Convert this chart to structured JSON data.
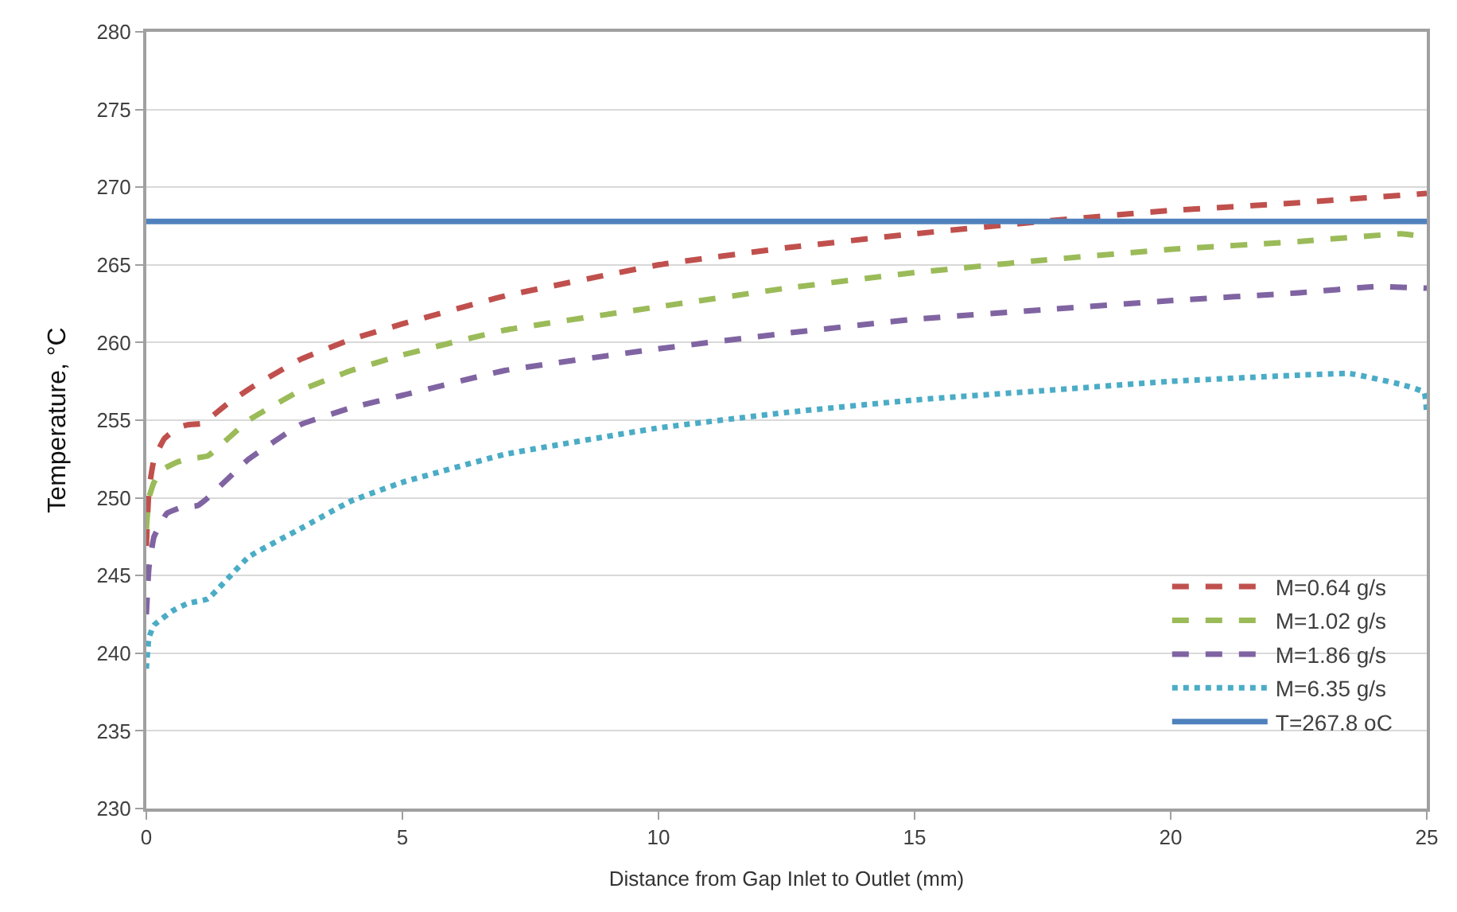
{
  "chart_data": {
    "type": "line",
    "xlabel": "Distance from Gap Inlet to Outlet (mm)",
    "ylabel": "Temperature, °C",
    "xlim": [
      0,
      25
    ],
    "xticks": [
      0,
      5,
      10,
      15,
      20,
      25
    ],
    "ylim": [
      230,
      280
    ],
    "yticks": [
      230,
      235,
      240,
      245,
      250,
      255,
      260,
      265,
      270,
      275,
      280
    ],
    "grid": "y",
    "legend": "bottom right",
    "marker": "none",
    "series": [
      {
        "name": "M=0.64 g/s",
        "color": "#c0504d",
        "line_style": "dashed",
        "x": [
          0,
          0.05,
          0.15,
          0.35,
          0.6,
          0.8,
          1.1,
          1.6,
          2.1,
          3,
          4,
          5,
          7,
          10,
          12.5,
          15,
          17.5,
          20,
          22.5,
          25
        ],
        "values": [
          246.9,
          250.5,
          252.5,
          253.8,
          254.5,
          254.7,
          254.8,
          256.1,
          257.2,
          258.9,
          260.2,
          261.2,
          263,
          265,
          266.1,
          267,
          267.8,
          268.5,
          269,
          269.6
        ]
      },
      {
        "name": "M=1.02 g/s",
        "color": "#9bbb59",
        "line_style": "dashed",
        "x": [
          0,
          0.05,
          0.15,
          0.3,
          0.6,
          0.8,
          1.2,
          2,
          3,
          4,
          5,
          7,
          10,
          12.5,
          15,
          17.5,
          20,
          22.5,
          24.5,
          25
        ],
        "values": [
          248,
          250,
          251,
          251.8,
          252.3,
          252.5,
          252.7,
          255,
          256.9,
          258.2,
          259.2,
          260.8,
          262.3,
          263.5,
          264.5,
          265.3,
          266,
          266.5,
          267,
          266.8
        ]
      },
      {
        "name": "M=1.86 g/s",
        "color": "#8064a2",
        "line_style": "dashed",
        "x": [
          0,
          0.05,
          0.15,
          0.4,
          0.7,
          1,
          1.2,
          2,
          3,
          4,
          5,
          7,
          10,
          12.5,
          15,
          17.5,
          20,
          22.5,
          24,
          25
        ],
        "values": [
          242.5,
          245.5,
          247.5,
          249,
          249.4,
          249.5,
          250,
          252.5,
          254.7,
          255.8,
          256.6,
          258.2,
          259.6,
          260.6,
          261.5,
          262.1,
          262.7,
          263.2,
          263.6,
          263.5
        ]
      },
      {
        "name": "M=6.35 g/s",
        "color": "#4bacc6",
        "line_style": "dotted",
        "x": [
          0,
          0.05,
          0.15,
          0.5,
          0.8,
          1.2,
          2,
          3,
          4,
          5,
          7,
          10,
          12.5,
          15,
          17.5,
          20,
          22.5,
          23.5,
          24.5,
          24.95,
          25
        ],
        "values": [
          239,
          241,
          241.8,
          242.7,
          243.2,
          243.5,
          246.2,
          248,
          249.8,
          251,
          252.8,
          254.5,
          255.5,
          256.3,
          256.9,
          257.5,
          257.9,
          258,
          257.3,
          256.8,
          255.3
        ]
      },
      {
        "name": "T=267.8 oC",
        "color": "#4f81bd",
        "line_style": "solid",
        "x": [
          0,
          25
        ],
        "values": [
          267.8,
          267.8
        ]
      }
    ]
  }
}
